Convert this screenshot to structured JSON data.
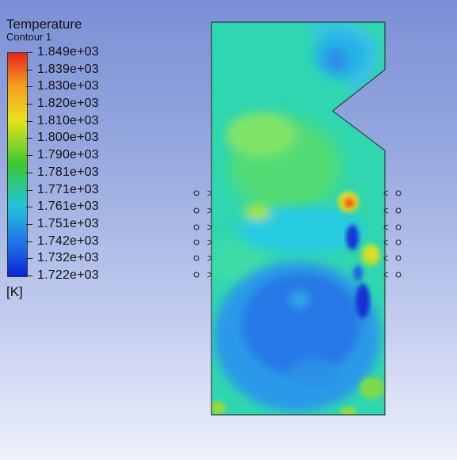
{
  "legend": {
    "title": "Temperature",
    "subtitle": "Contour 1",
    "unit": "[K]",
    "ticks": [
      "1.849e+03",
      "1.839e+03",
      "1.830e+03",
      "1.820e+03",
      "1.810e+03",
      "1.800e+03",
      "1.790e+03",
      "1.781e+03",
      "1.771e+03",
      "1.761e+03",
      "1.751e+03",
      "1.742e+03",
      "1.732e+03",
      "1.722e+03"
    ],
    "colors": {
      "max": "#e8221c",
      "orange": "#f59a1c",
      "yellow": "#e9e21d",
      "green": "#39c832",
      "cyan": "#22c6d8",
      "blue": "#1e70e8",
      "min": "#0c22d6"
    }
  },
  "contour": {
    "background_color": "#2fd6b0",
    "left_nozzles": 6,
    "right_nozzles": 6
  }
}
